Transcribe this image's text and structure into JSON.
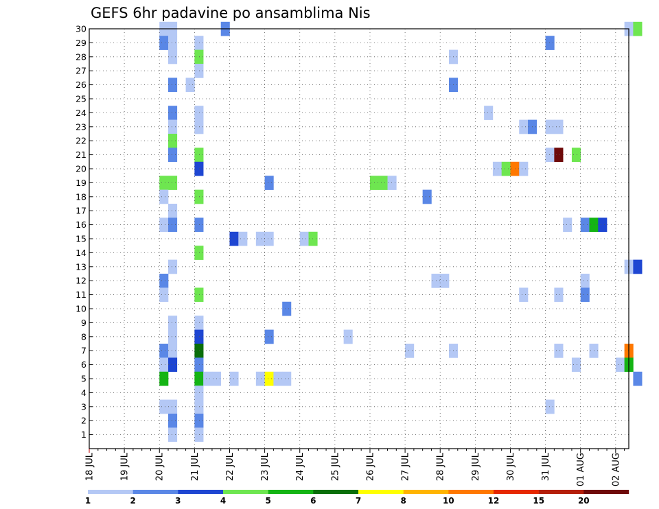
{
  "chart_data": {
    "type": "heatmap",
    "title": "GEFS 6hr padavine po ansamblima Nis",
    "xlabel": "",
    "ylabel": "",
    "x_tick_labels": [
      "18 JUL",
      "19 JUL",
      "20 JUL",
      "21 JUL",
      "22 JUL",
      "23 JUL",
      "24 JUL",
      "25 JUL",
      "26 JUL",
      "27 JUL",
      "28 JUL",
      "29 JUL",
      "30 JUL",
      "31 JUL",
      "01 AUG",
      "02 AUG"
    ],
    "y_tick_labels": [
      1,
      2,
      3,
      4,
      5,
      6,
      7,
      8,
      9,
      10,
      11,
      12,
      13,
      14,
      15,
      16,
      17,
      18,
      19,
      20,
      21,
      22,
      23,
      24,
      25,
      26,
      27,
      28,
      29,
      30
    ],
    "x_unit": "6-hour step from 18 JUL 00Z",
    "y_unit": "ensemble member",
    "ylim": [
      0,
      30
    ],
    "grid": true,
    "colorbar": {
      "labels": [
        "1",
        "2",
        "3",
        "4",
        "5",
        "6",
        "7",
        "8",
        "10",
        "12",
        "15",
        "20"
      ],
      "colors": [
        "#b4c8f5",
        "#5a87e6",
        "#1e46d2",
        "#6ee650",
        "#14b414",
        "#0a6e0a",
        "#ffff00",
        "#ffb400",
        "#ff7800",
        "#e62800",
        "#b41e0a",
        "#6e0a0a"
      ]
    },
    "cells": [
      {
        "x": 8,
        "m": 30,
        "c": 0
      },
      {
        "x": 9,
        "m": 30,
        "c": 0
      },
      {
        "x": 15,
        "m": 30,
        "c": 1
      },
      {
        "x": 61,
        "m": 30,
        "c": 0
      },
      {
        "x": 62,
        "m": 30,
        "c": 3
      },
      {
        "x": 8,
        "m": 29,
        "c": 1
      },
      {
        "x": 9,
        "m": 29,
        "c": 0
      },
      {
        "x": 12,
        "m": 29,
        "c": 0
      },
      {
        "x": 52,
        "m": 29,
        "c": 1
      },
      {
        "x": 9,
        "m": 28,
        "c": 0
      },
      {
        "x": 12,
        "m": 28,
        "c": 3
      },
      {
        "x": 41,
        "m": 28,
        "c": 0
      },
      {
        "x": 12,
        "m": 27,
        "c": 0
      },
      {
        "x": 9,
        "m": 26,
        "c": 1
      },
      {
        "x": 11,
        "m": 26,
        "c": 0
      },
      {
        "x": 41,
        "m": 26,
        "c": 1
      },
      {
        "x": 9,
        "m": 24,
        "c": 1
      },
      {
        "x": 12,
        "m": 24,
        "c": 0
      },
      {
        "x": 45,
        "m": 24,
        "c": 0
      },
      {
        "x": 9,
        "m": 23,
        "c": 0
      },
      {
        "x": 12,
        "m": 23,
        "c": 0
      },
      {
        "x": 49,
        "m": 23,
        "c": 0
      },
      {
        "x": 50,
        "m": 23,
        "c": 1
      },
      {
        "x": 52,
        "m": 23,
        "c": 0
      },
      {
        "x": 53,
        "m": 23,
        "c": 0
      },
      {
        "x": 9,
        "m": 22,
        "c": 3
      },
      {
        "x": 9,
        "m": 21,
        "c": 1
      },
      {
        "x": 12,
        "m": 21,
        "c": 3
      },
      {
        "x": 52,
        "m": 21,
        "c": 0
      },
      {
        "x": 53,
        "m": 21,
        "c": 11
      },
      {
        "x": 55,
        "m": 21,
        "c": 3
      },
      {
        "x": 12,
        "m": 20,
        "c": 2
      },
      {
        "x": 46,
        "m": 20,
        "c": 0
      },
      {
        "x": 47,
        "m": 20,
        "c": 3
      },
      {
        "x": 48,
        "m": 20,
        "c": 8
      },
      {
        "x": 49,
        "m": 20,
        "c": 0
      },
      {
        "x": 8,
        "m": 19,
        "c": 3
      },
      {
        "x": 9,
        "m": 19,
        "c": 3
      },
      {
        "x": 20,
        "m": 19,
        "c": 1
      },
      {
        "x": 32,
        "m": 19,
        "c": 3
      },
      {
        "x": 33,
        "m": 19,
        "c": 3
      },
      {
        "x": 34,
        "m": 19,
        "c": 0
      },
      {
        "x": 8,
        "m": 18,
        "c": 0
      },
      {
        "x": 12,
        "m": 18,
        "c": 3
      },
      {
        "x": 38,
        "m": 18,
        "c": 1
      },
      {
        "x": 9,
        "m": 17,
        "c": 0
      },
      {
        "x": 8,
        "m": 16,
        "c": 0
      },
      {
        "x": 9,
        "m": 16,
        "c": 1
      },
      {
        "x": 12,
        "m": 16,
        "c": 1
      },
      {
        "x": 54,
        "m": 16,
        "c": 0
      },
      {
        "x": 56,
        "m": 16,
        "c": 1
      },
      {
        "x": 57,
        "m": 16,
        "c": 4
      },
      {
        "x": 58,
        "m": 16,
        "c": 2
      },
      {
        "x": 16,
        "m": 15,
        "c": 2
      },
      {
        "x": 17,
        "m": 15,
        "c": 0
      },
      {
        "x": 19,
        "m": 15,
        "c": 0
      },
      {
        "x": 20,
        "m": 15,
        "c": 0
      },
      {
        "x": 24,
        "m": 15,
        "c": 0
      },
      {
        "x": 25,
        "m": 15,
        "c": 3
      },
      {
        "x": 12,
        "m": 14,
        "c": 3
      },
      {
        "x": 9,
        "m": 13,
        "c": 0
      },
      {
        "x": 61,
        "m": 13,
        "c": 0
      },
      {
        "x": 62,
        "m": 13,
        "c": 2
      },
      {
        "x": 8,
        "m": 12,
        "c": 1
      },
      {
        "x": 39,
        "m": 12,
        "c": 0
      },
      {
        "x": 40,
        "m": 12,
        "c": 0
      },
      {
        "x": 56,
        "m": 12,
        "c": 0
      },
      {
        "x": 8,
        "m": 11,
        "c": 0
      },
      {
        "x": 12,
        "m": 11,
        "c": 3
      },
      {
        "x": 49,
        "m": 11,
        "c": 0
      },
      {
        "x": 53,
        "m": 11,
        "c": 0
      },
      {
        "x": 56,
        "m": 11,
        "c": 1
      },
      {
        "x": 22,
        "m": 10,
        "c": 1
      },
      {
        "x": 9,
        "m": 9,
        "c": 0
      },
      {
        "x": 12,
        "m": 9,
        "c": 0
      },
      {
        "x": 9,
        "m": 8,
        "c": 0
      },
      {
        "x": 12,
        "m": 8,
        "c": 2
      },
      {
        "x": 20,
        "m": 8,
        "c": 1
      },
      {
        "x": 29,
        "m": 8,
        "c": 0
      },
      {
        "x": 8,
        "m": 7,
        "c": 1
      },
      {
        "x": 9,
        "m": 7,
        "c": 0
      },
      {
        "x": 12,
        "m": 7,
        "c": 5
      },
      {
        "x": 36,
        "m": 7,
        "c": 0
      },
      {
        "x": 41,
        "m": 7,
        "c": 0
      },
      {
        "x": 53,
        "m": 7,
        "c": 0
      },
      {
        "x": 57,
        "m": 7,
        "c": 0
      },
      {
        "x": 61,
        "m": 7,
        "c": 8
      },
      {
        "x": 8,
        "m": 6,
        "c": 0
      },
      {
        "x": 9,
        "m": 6,
        "c": 2
      },
      {
        "x": 12,
        "m": 6,
        "c": 1
      },
      {
        "x": 55,
        "m": 6,
        "c": 0
      },
      {
        "x": 60,
        "m": 6,
        "c": 0
      },
      {
        "x": 61,
        "m": 6,
        "c": 4
      },
      {
        "x": 8,
        "m": 5,
        "c": 4
      },
      {
        "x": 12,
        "m": 5,
        "c": 4
      },
      {
        "x": 13,
        "m": 5,
        "c": 0
      },
      {
        "x": 14,
        "m": 5,
        "c": 0
      },
      {
        "x": 16,
        "m": 5,
        "c": 0
      },
      {
        "x": 19,
        "m": 5,
        "c": 0
      },
      {
        "x": 20,
        "m": 5,
        "c": 6
      },
      {
        "x": 21,
        "m": 5,
        "c": 0
      },
      {
        "x": 22,
        "m": 5,
        "c": 0
      },
      {
        "x": 62,
        "m": 5,
        "c": 1
      },
      {
        "x": 12,
        "m": 4,
        "c": 0
      },
      {
        "x": 8,
        "m": 3,
        "c": 0
      },
      {
        "x": 9,
        "m": 3,
        "c": 0
      },
      {
        "x": 12,
        "m": 3,
        "c": 0
      },
      {
        "x": 52,
        "m": 3,
        "c": 0
      },
      {
        "x": 9,
        "m": 2,
        "c": 1
      },
      {
        "x": 12,
        "m": 2,
        "c": 1
      },
      {
        "x": 9,
        "m": 1,
        "c": 0
      },
      {
        "x": 12,
        "m": 1,
        "c": 0
      }
    ]
  }
}
